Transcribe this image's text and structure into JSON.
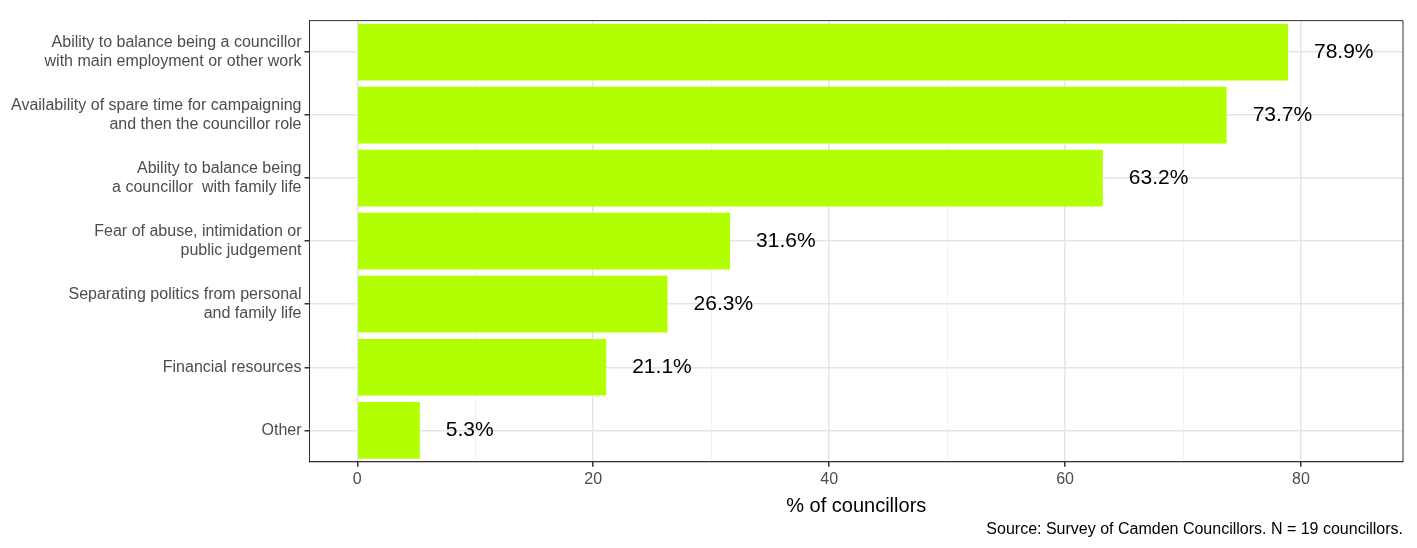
{
  "chart_data": {
    "type": "bar",
    "orientation": "horizontal",
    "xlabel": "% of councillors",
    "categories": [
      "Ability to balance being a councillor\nwith main employment or other work",
      "Availability of spare time for campaigning\nand then the councillor role",
      "Ability to balance being\na councillor  with family life",
      "Fear of abuse, intimidation or\npublic judgement",
      "Separating politics from personal\nand family life",
      "Financial resources",
      "Other"
    ],
    "values": [
      78.9,
      73.7,
      63.2,
      31.6,
      26.3,
      21.1,
      5.3
    ],
    "value_labels": [
      "78.9%",
      "73.7%",
      "63.2%",
      "31.6%",
      "26.3%",
      "21.1%",
      "5.3%"
    ],
    "color": "#b2ff00",
    "xlim": [
      -4.05,
      88.65
    ],
    "xticks": [
      0,
      {
        "value": 10,
        "label": null
      },
      20,
      {
        "value": 30,
        "label": null
      },
      40,
      {
        "value": 50,
        "label": null
      },
      60,
      {
        "value": 70,
        "label": null
      },
      80
    ],
    "grid": true,
    "annotations": [
      "Source: Survey of Camden Councillors. N = 19 councillors."
    ]
  }
}
